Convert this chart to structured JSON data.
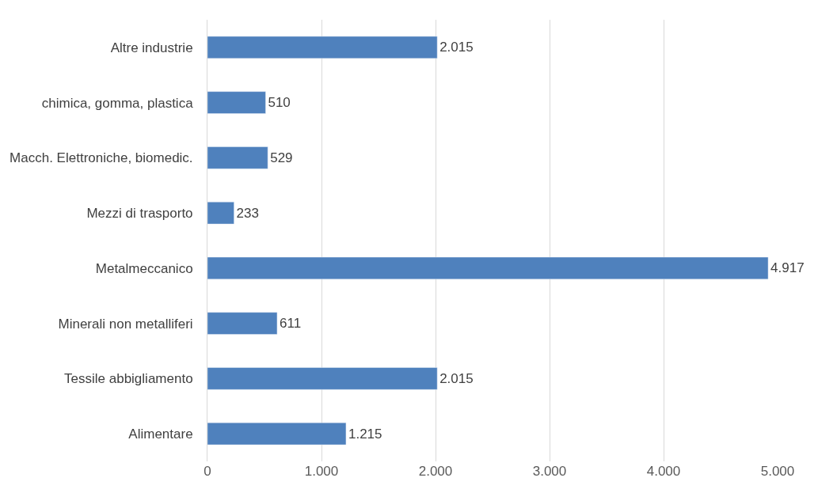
{
  "chart_data": {
    "type": "bar",
    "orientation": "horizontal",
    "categories": [
      "Altre industrie",
      "chimica, gomma, plastica",
      "Macch. Elettroniche, biomedic.",
      "Mezzi di trasporto",
      "Metalmeccanico",
      "Minerali non metalliferi",
      "Tessile abbigliamento",
      "Alimentare"
    ],
    "values": [
      2015,
      510,
      529,
      233,
      4917,
      611,
      2015,
      1215
    ],
    "value_labels": [
      "2.015",
      "510",
      "529",
      "233",
      "4.917",
      "611",
      "2.015",
      "1.215"
    ],
    "color": "#4f81bd",
    "xlim": [
      0,
      5000
    ],
    "xticks": [
      0,
      {
        "value": 1000,
        "label": "1.000"
      },
      {
        "value": 2000,
        "label": "2.000"
      },
      {
        "value": 3000,
        "label": "3.000"
      },
      {
        "value": 4000,
        "label": "4.000"
      },
      {
        "value": 5000,
        "label": "5.000"
      }
    ],
    "grid": "x",
    "legend": false
  }
}
